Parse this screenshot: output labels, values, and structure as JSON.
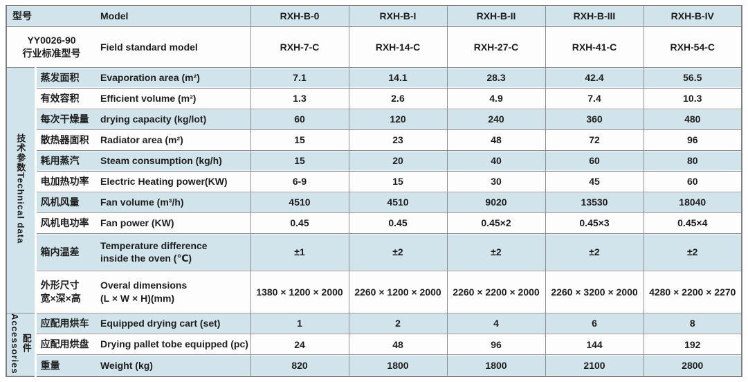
{
  "header": {
    "model_row": {
      "zh": "型号",
      "en": "Model",
      "values": [
        "RXH-B-0",
        "RXH-B-I",
        "RXH-B-II",
        "RXH-B-III",
        "RXH-B-IV"
      ]
    },
    "standard_row": {
      "zh": "YY0026-90\n行业标准型号",
      "en": "Field standard model",
      "values": [
        "RXH-7-C",
        "RXH-14-C",
        "RXH-27-C",
        "RXH-41-C",
        "RXH-54-C"
      ]
    }
  },
  "groups": [
    {
      "strip_text": "技术参数Technical data",
      "rows": [
        {
          "zh": "蒸发面积",
          "en": "Evaporation area (m²)",
          "size": "normal",
          "values": [
            "7.1",
            "14.1",
            "28.3",
            "42.4",
            "56.5"
          ]
        },
        {
          "zh": "有效容积",
          "en": "Efficient volume (m²)",
          "size": "normal",
          "values": [
            "1.3",
            "2.6",
            "4.9",
            "7.4",
            "10.3"
          ]
        },
        {
          "zh": "每次干燥量",
          "en": "drying capacity (kg/lot)",
          "size": "normal",
          "values": [
            "60",
            "120",
            "240",
            "360",
            "480"
          ]
        },
        {
          "zh": "散热器面积",
          "en": "Radiator area (m²)",
          "size": "normal",
          "values": [
            "15",
            "23",
            "48",
            "72",
            "96"
          ]
        },
        {
          "zh": "耗用蒸汽",
          "en": "Steam consumption (kg/h)",
          "size": "normal",
          "values": [
            "15",
            "20",
            "40",
            "60",
            "80"
          ]
        },
        {
          "zh": "电加热功率",
          "en": "Electric Heating power(KW)",
          "size": "normal",
          "values": [
            "6-9",
            "15",
            "30",
            "45",
            "60"
          ]
        },
        {
          "zh": "风机风量",
          "en": "Fan volume (m³/h)",
          "size": "normal",
          "values": [
            "4510",
            "4510",
            "9020",
            "13530",
            "18040"
          ]
        },
        {
          "zh": "风机电功率",
          "en": "Fan power (KW)",
          "size": "normal",
          "values": [
            "0.45",
            "0.45",
            "0.45×2",
            "0.45×3",
            "0.45×4"
          ]
        },
        {
          "zh": "箱内温差",
          "en": "Temperature difference\ninside the oven (℃)",
          "size": "tall",
          "values": [
            "±1",
            "±2",
            "±2",
            "±2",
            "±2"
          ]
        },
        {
          "zh": "外形尺寸\n宽×深×高",
          "en": "Overal dimensions\n(L × W × H)(mm)",
          "size": "xtall",
          "values": [
            "1380 × 1200 × 2000",
            "2260 × 1200 × 2000",
            "2260 × 2200 × 2000",
            "2260 × 3200 × 2000",
            "4280 × 2200 × 2270"
          ]
        }
      ]
    },
    {
      "strip_text": "配件\nAccessories",
      "rows": [
        {
          "zh": "应配用烘车",
          "en": "Equipped drying cart (set)",
          "size": "short",
          "values": [
            "1",
            "2",
            "4",
            "6",
            "8"
          ]
        },
        {
          "zh": "应配用烘盘",
          "en": "Drying pallet tobe equipped (pc)",
          "size": "short",
          "values": [
            "24",
            "48",
            "96",
            "144",
            "192"
          ]
        },
        {
          "zh": "重量",
          "en": "Weight (kg)",
          "size": "normal",
          "values": [
            "820",
            "1800",
            "1800",
            "2100",
            "2800"
          ]
        }
      ]
    }
  ],
  "colors": {
    "band_blue": "#d2e4eb",
    "band_white": "#fdfdfd",
    "grid_line": "#8e8e8e",
    "outer_border": "#7d7d7d",
    "text": "#1d1d1d"
  }
}
